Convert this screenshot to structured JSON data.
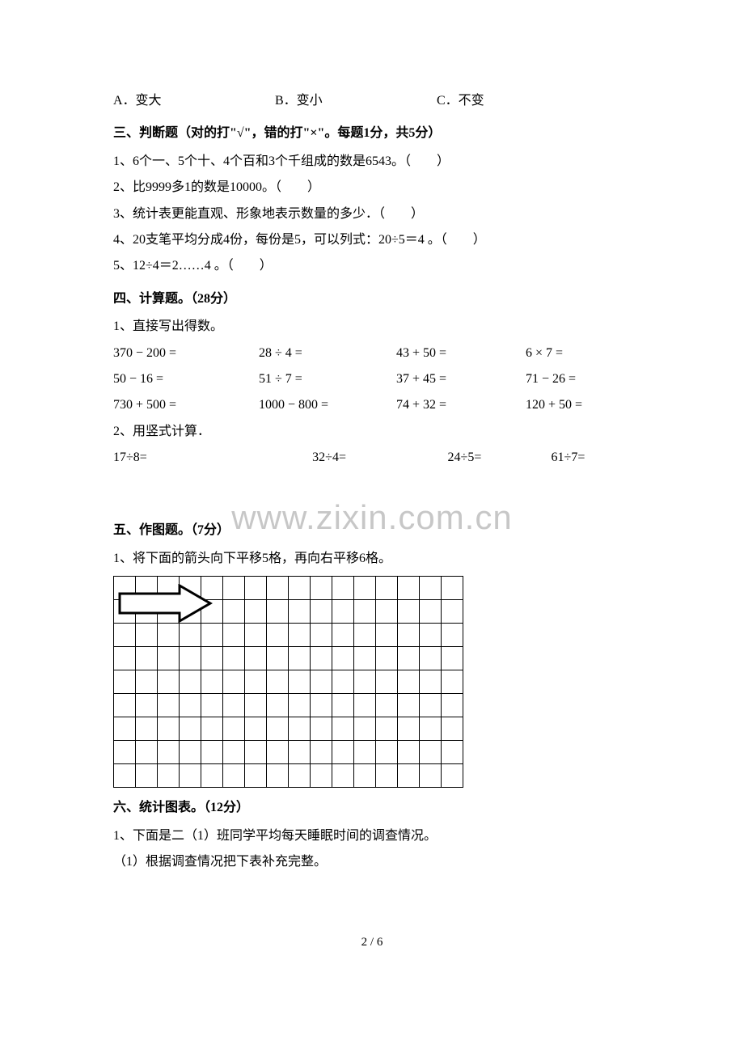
{
  "options": {
    "a": "A．变大",
    "b": "B．变小",
    "c": "C．不变"
  },
  "section3": {
    "heading": "三、判断题（对的打\"√\"，错的打\"×\"。每题1分，共5分）",
    "q1": "1、6个一、5个十、4个百和3个千组成的数是6543。（　　）",
    "q2": "2、比9999多1的数是10000。（　　）",
    "q3": "3、统计表更能直观、形象地表示数量的多少．（　　）",
    "q4": "4、20支笔平均分成4份，每份是5，可以列式：20÷5＝4 。（　　）",
    "q5": "5、12÷4＝2……4 。（　　）"
  },
  "section4": {
    "heading": "四、计算题。（28分）",
    "sub1": "1、直接写出得数。",
    "rows": [
      [
        "370 − 200 =",
        "28 ÷ 4 =",
        "43 + 50 =",
        "6 × 7 ="
      ],
      [
        "50 − 16 =",
        "51 ÷ 7 =",
        "37 + 45 =",
        "71 − 26 ="
      ],
      [
        "730 + 500 =",
        "1000 − 800 =",
        "74 + 32 =",
        "120 + 50 ="
      ]
    ],
    "sub2": "2、用竖式计算．",
    "vrow": [
      "17÷8=",
      "32÷4=",
      "24÷5=",
      "61÷7="
    ]
  },
  "section5": {
    "heading": "五、作图题。（7分）",
    "q1": "1、将下面的箭头向下平移5格，再向右平移6格。"
  },
  "section6": {
    "heading": "六、统计图表。（12分）",
    "q1": "1、下面是二（1）班同学平均每天睡眠时间的调查情况。",
    "q1a": "（1）根据调查情况把下表补充完整。"
  },
  "watermark": "www.zixin.com.cn",
  "footer": "2 / 6",
  "grid": {
    "cols": 16,
    "rows": 9
  },
  "arrow": {
    "stroke": "#000000",
    "fill": "#ffffff",
    "stroke_width": 3
  }
}
